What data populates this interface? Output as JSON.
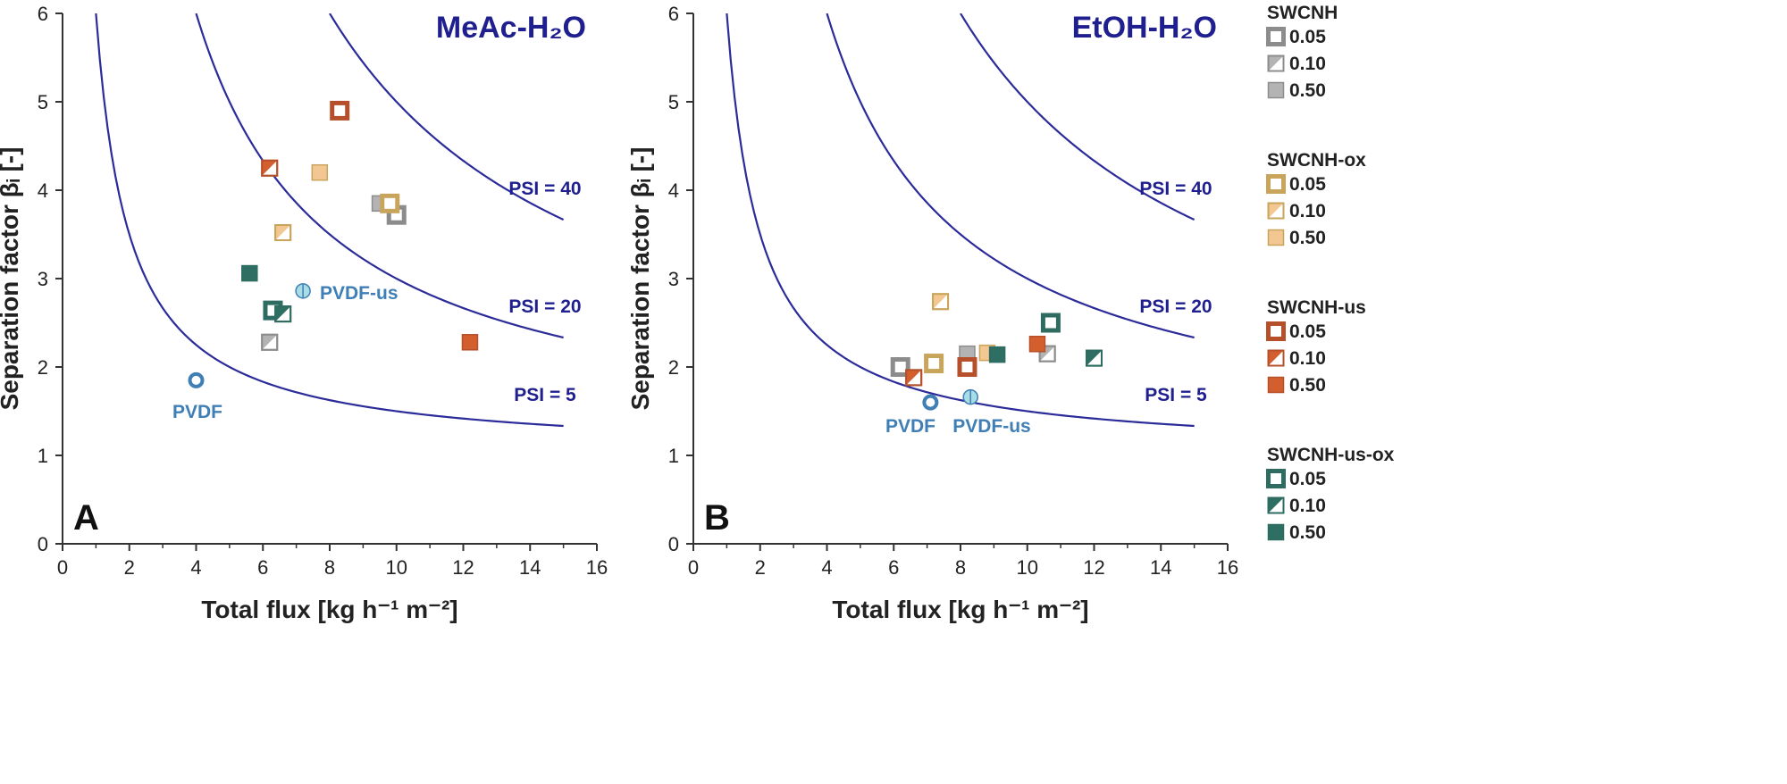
{
  "colors": {
    "SWCNH": "#8c8c8c",
    "SWCNH-ox": "#c9a55c",
    "SWCNH-us": "#b5502a",
    "SWCNH-us-ox": "#2e6b60",
    "SWCNH_fill": "#b3b3b3",
    "SWCNH-ox_fill": "#f2c792",
    "SWCNH-us_fill": "#d45f2e",
    "SWCNH-us-ox_fill": "#2f6e63",
    "curve": "#2b2b9a",
    "pvdf": "#3f7fb5",
    "pvdf_us_fill": "#a8dde6"
  },
  "legend": {
    "groups": [
      {
        "name": "SWCNH",
        "items": [
          "0.05",
          "0.10",
          "0.50"
        ]
      },
      {
        "name": "SWCNH-ox",
        "items": [
          "0.05",
          "0.10",
          "0.50"
        ]
      },
      {
        "name": "SWCNH-us",
        "items": [
          "0.05",
          "0.10",
          "0.50"
        ]
      },
      {
        "name": "SWCNH-us-ox",
        "items": [
          "0.05",
          "0.10",
          "0.50"
        ]
      }
    ]
  },
  "chart_data": [
    {
      "type": "scatter",
      "panel_label": "A",
      "title": "MeAc-H₂O",
      "xlabel": "Total flux [kg h⁻¹ m⁻²]",
      "ylabel": "Separation factor βᵢ [-]",
      "xlim": [
        0,
        16
      ],
      "ylim": [
        0,
        6
      ],
      "xticks": [
        "0",
        "2",
        "4",
        "6",
        "8",
        "10",
        "12",
        "14",
        "16"
      ],
      "yticks": [
        "0",
        "1",
        "2",
        "3",
        "4",
        "5",
        "6"
      ],
      "psi_curves": [
        {
          "psi": 5,
          "label": "PSI = 5",
          "x_from": 1.0,
          "x_to": 15.0
        },
        {
          "psi": 20,
          "label": "PSI = 20",
          "x_from": 4.0,
          "x_to": 15.0
        },
        {
          "psi": 40,
          "label": "PSI = 40",
          "x_from": 8.0,
          "x_to": 15.0
        }
      ],
      "series": [
        {
          "name": "SWCNH",
          "points": [
            {
              "x": 6.2,
              "y": 2.28,
              "load": "0.10"
            },
            {
              "x": 9.5,
              "y": 3.85,
              "load": "0.50"
            },
            {
              "x": 10.0,
              "y": 3.72,
              "load": "0.05"
            }
          ]
        },
        {
          "name": "SWCNH-ox",
          "points": [
            {
              "x": 6.6,
              "y": 3.52,
              "load": "0.10"
            },
            {
              "x": 7.7,
              "y": 4.2,
              "load": "0.50"
            },
            {
              "x": 9.8,
              "y": 3.85,
              "load": "0.05"
            }
          ]
        },
        {
          "name": "SWCNH-us",
          "points": [
            {
              "x": 6.2,
              "y": 4.25,
              "load": "0.10"
            },
            {
              "x": 8.3,
              "y": 4.9,
              "load": "0.05"
            },
            {
              "x": 12.2,
              "y": 2.28,
              "load": "0.50"
            }
          ]
        },
        {
          "name": "SWCNH-us-ox",
          "points": [
            {
              "x": 5.6,
              "y": 3.06,
              "load": "0.50"
            },
            {
              "x": 6.3,
              "y": 2.64,
              "load": "0.05"
            },
            {
              "x": 6.6,
              "y": 2.6,
              "load": "0.10"
            }
          ]
        }
      ],
      "references": [
        {
          "name": "PVDF",
          "label": "PVDF",
          "x": 4.0,
          "y": 1.85,
          "kind": "open"
        },
        {
          "name": "PVDF-us",
          "label": "PVDF-us",
          "x": 7.2,
          "y": 2.86,
          "kind": "half"
        }
      ]
    },
    {
      "type": "scatter",
      "panel_label": "B",
      "title": "EtOH-H₂O",
      "xlabel": "Total flux [kg h⁻¹ m⁻²]",
      "ylabel": "Separation factor βᵢ [-]",
      "xlim": [
        0,
        16
      ],
      "ylim": [
        0,
        6
      ],
      "xticks": [
        "0",
        "2",
        "4",
        "6",
        "8",
        "10",
        "12",
        "14",
        "16"
      ],
      "yticks": [
        "0",
        "1",
        "2",
        "3",
        "4",
        "5",
        "6"
      ],
      "psi_curves": [
        {
          "psi": 5,
          "label": "PSI = 5",
          "x_from": 1.0,
          "x_to": 15.0
        },
        {
          "psi": 20,
          "label": "PSI = 20",
          "x_from": 4.0,
          "x_to": 15.0
        },
        {
          "psi": 40,
          "label": "PSI = 40",
          "x_from": 8.0,
          "x_to": 15.0
        }
      ],
      "series": [
        {
          "name": "SWCNH",
          "points": [
            {
              "x": 6.2,
              "y": 2.0,
              "load": "0.05"
            },
            {
              "x": 8.2,
              "y": 2.15,
              "load": "0.50"
            },
            {
              "x": 10.6,
              "y": 2.15,
              "load": "0.10"
            }
          ]
        },
        {
          "name": "SWCNH-ox",
          "points": [
            {
              "x": 7.2,
              "y": 2.04,
              "load": "0.05"
            },
            {
              "x": 7.4,
              "y": 2.74,
              "load": "0.10"
            },
            {
              "x": 8.8,
              "y": 2.16,
              "load": "0.50"
            }
          ]
        },
        {
          "name": "SWCNH-us",
          "points": [
            {
              "x": 6.6,
              "y": 1.88,
              "load": "0.10"
            },
            {
              "x": 8.2,
              "y": 2.0,
              "load": "0.05"
            },
            {
              "x": 10.3,
              "y": 2.26,
              "load": "0.50"
            }
          ]
        },
        {
          "name": "SWCNH-us-ox",
          "points": [
            {
              "x": 9.1,
              "y": 2.14,
              "load": "0.50"
            },
            {
              "x": 10.7,
              "y": 2.5,
              "load": "0.05"
            },
            {
              "x": 12.0,
              "y": 2.1,
              "load": "0.10"
            }
          ]
        }
      ],
      "references": [
        {
          "name": "PVDF",
          "label": "PVDF",
          "x": 7.1,
          "y": 1.6,
          "kind": "open"
        },
        {
          "name": "PVDF-us",
          "label": "PVDF-us",
          "x": 8.3,
          "y": 1.66,
          "kind": "half"
        }
      ]
    }
  ]
}
